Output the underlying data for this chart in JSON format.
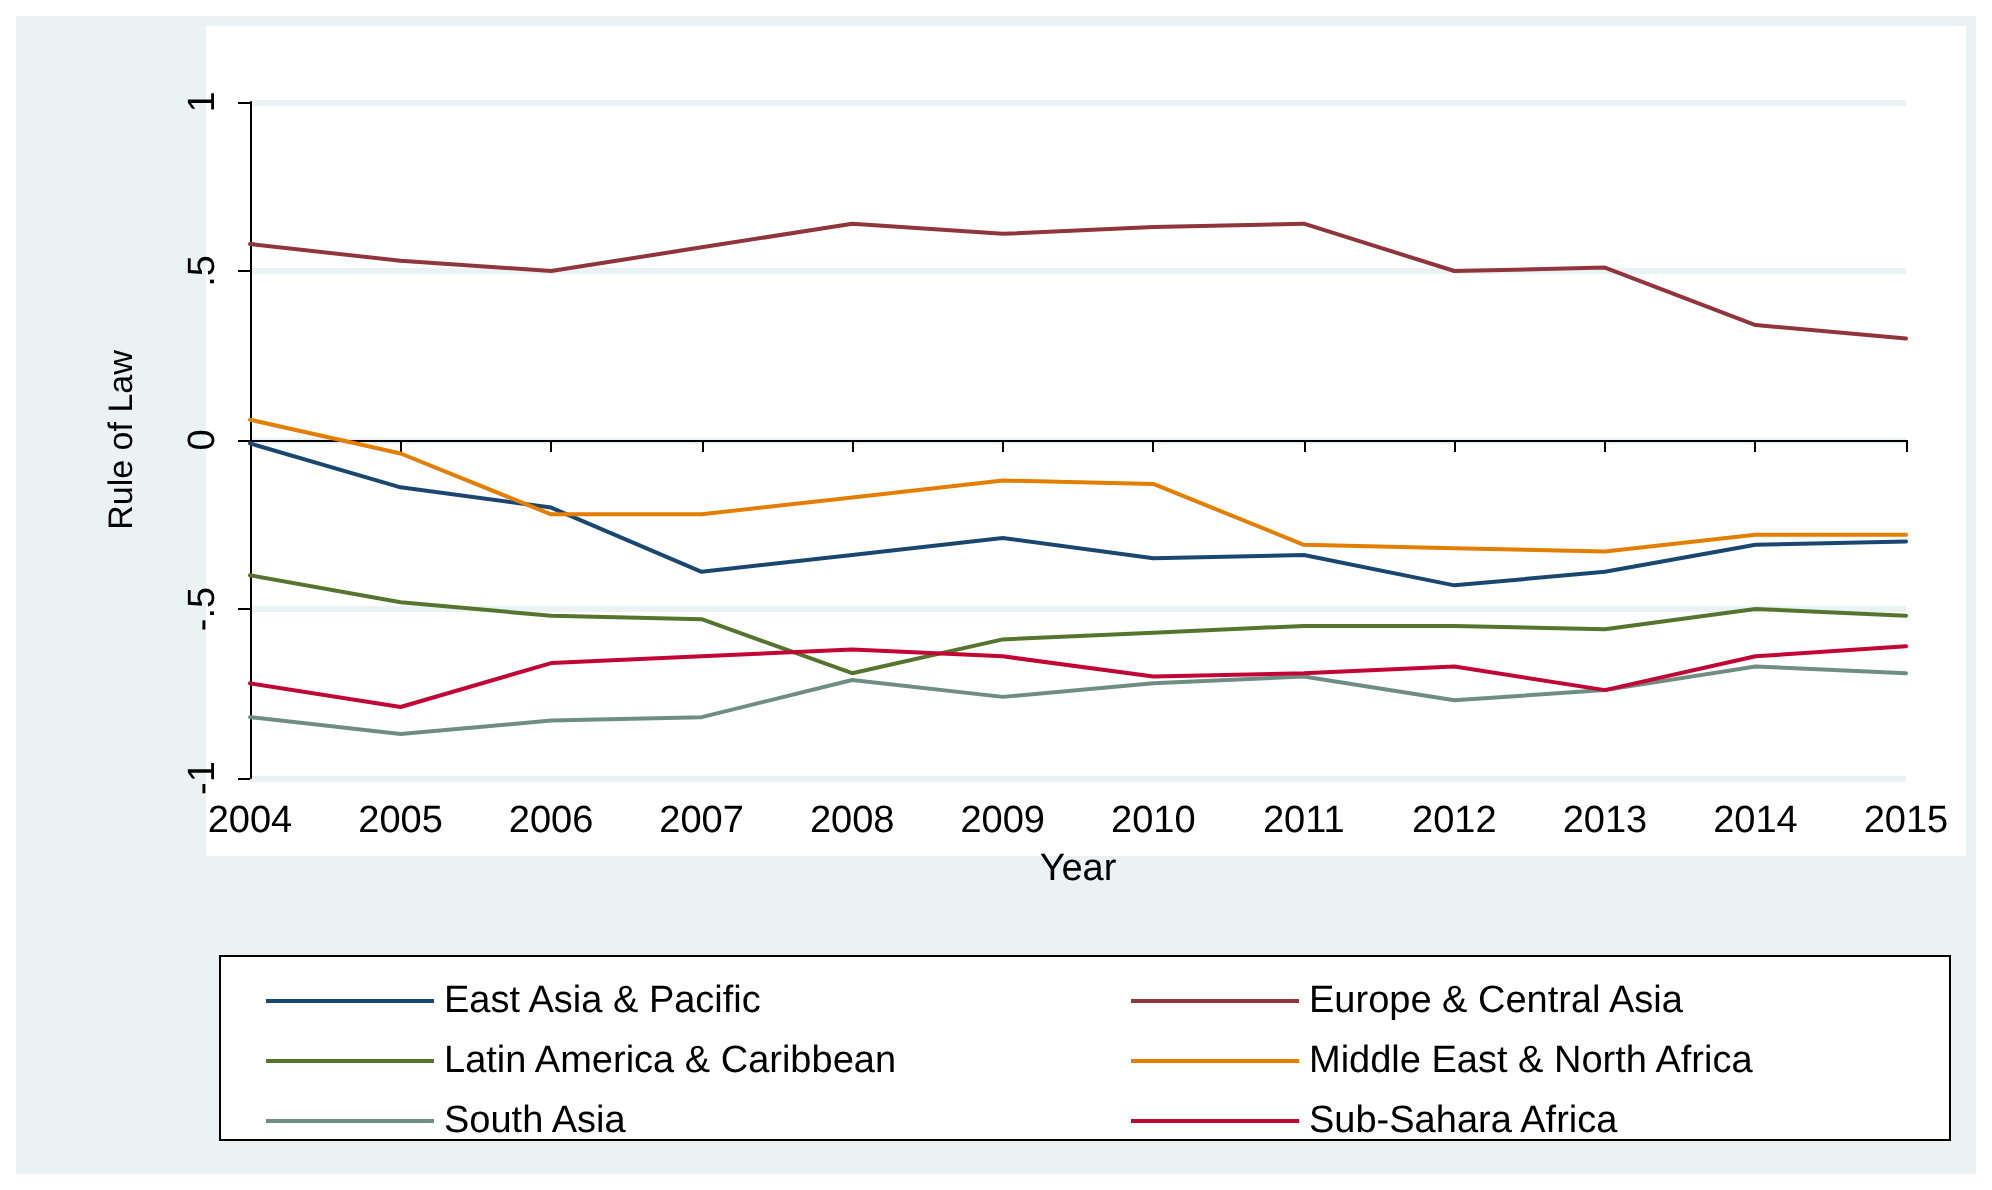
{
  "chart_data": {
    "type": "line",
    "xlabel": "Year",
    "ylabel": "Rule of Law",
    "x": [
      2004,
      2005,
      2006,
      2007,
      2008,
      2009,
      2010,
      2011,
      2012,
      2013,
      2014,
      2015
    ],
    "xlim": [
      2004,
      2015
    ],
    "xticks": [
      2004,
      2005,
      2006,
      2007,
      2008,
      2009,
      2010,
      2011,
      2012,
      2013,
      2014,
      2015
    ],
    "ylim": [
      -1,
      1
    ],
    "yticks": [
      {
        "value": -1,
        "label": "-1"
      },
      {
        "value": -0.5,
        "label": "-.5"
      },
      0,
      {
        "value": 0.5,
        "label": ".5"
      },
      1
    ],
    "grid": "y",
    "legend": "bottom",
    "marker": "none",
    "line_style": "solid",
    "series": [
      {
        "name": "East Asia & Pacific",
        "color": "#1a476f",
        "values": [
          -0.01,
          -0.14,
          -0.2,
          -0.39,
          -0.34,
          -0.29,
          -0.35,
          -0.34,
          -0.43,
          -0.39,
          -0.31,
          -0.3
        ]
      },
      {
        "name": "Europe & Central Asia",
        "color": "#90353b",
        "values": [
          0.58,
          0.53,
          0.5,
          0.57,
          0.64,
          0.61,
          0.63,
          0.64,
          0.5,
          0.51,
          0.34,
          0.3
        ]
      },
      {
        "name": "Latin America & Caribbean",
        "color": "#55752f",
        "values": [
          -0.4,
          -0.48,
          -0.52,
          -0.53,
          -0.69,
          -0.59,
          -0.57,
          -0.55,
          -0.55,
          -0.56,
          -0.5,
          -0.52
        ]
      },
      {
        "name": "Middle East & North Africa",
        "color": "#e37e00",
        "values": [
          0.06,
          -0.04,
          -0.22,
          -0.22,
          -0.17,
          -0.12,
          -0.13,
          -0.31,
          -0.32,
          -0.33,
          -0.28,
          -0.28
        ]
      },
      {
        "name": "South Asia",
        "color": "#6e8e84",
        "values": [
          -0.82,
          -0.87,
          -0.83,
          -0.82,
          -0.71,
          -0.76,
          -0.72,
          -0.7,
          -0.77,
          -0.74,
          -0.67,
          -0.69
        ]
      },
      {
        "name": "Sub-Sahara Africa",
        "color": "#c10534",
        "values": [
          -0.72,
          -0.79,
          -0.66,
          -0.64,
          -0.62,
          -0.64,
          -0.7,
          -0.69,
          -0.67,
          -0.74,
          -0.64,
          -0.61
        ]
      }
    ]
  }
}
